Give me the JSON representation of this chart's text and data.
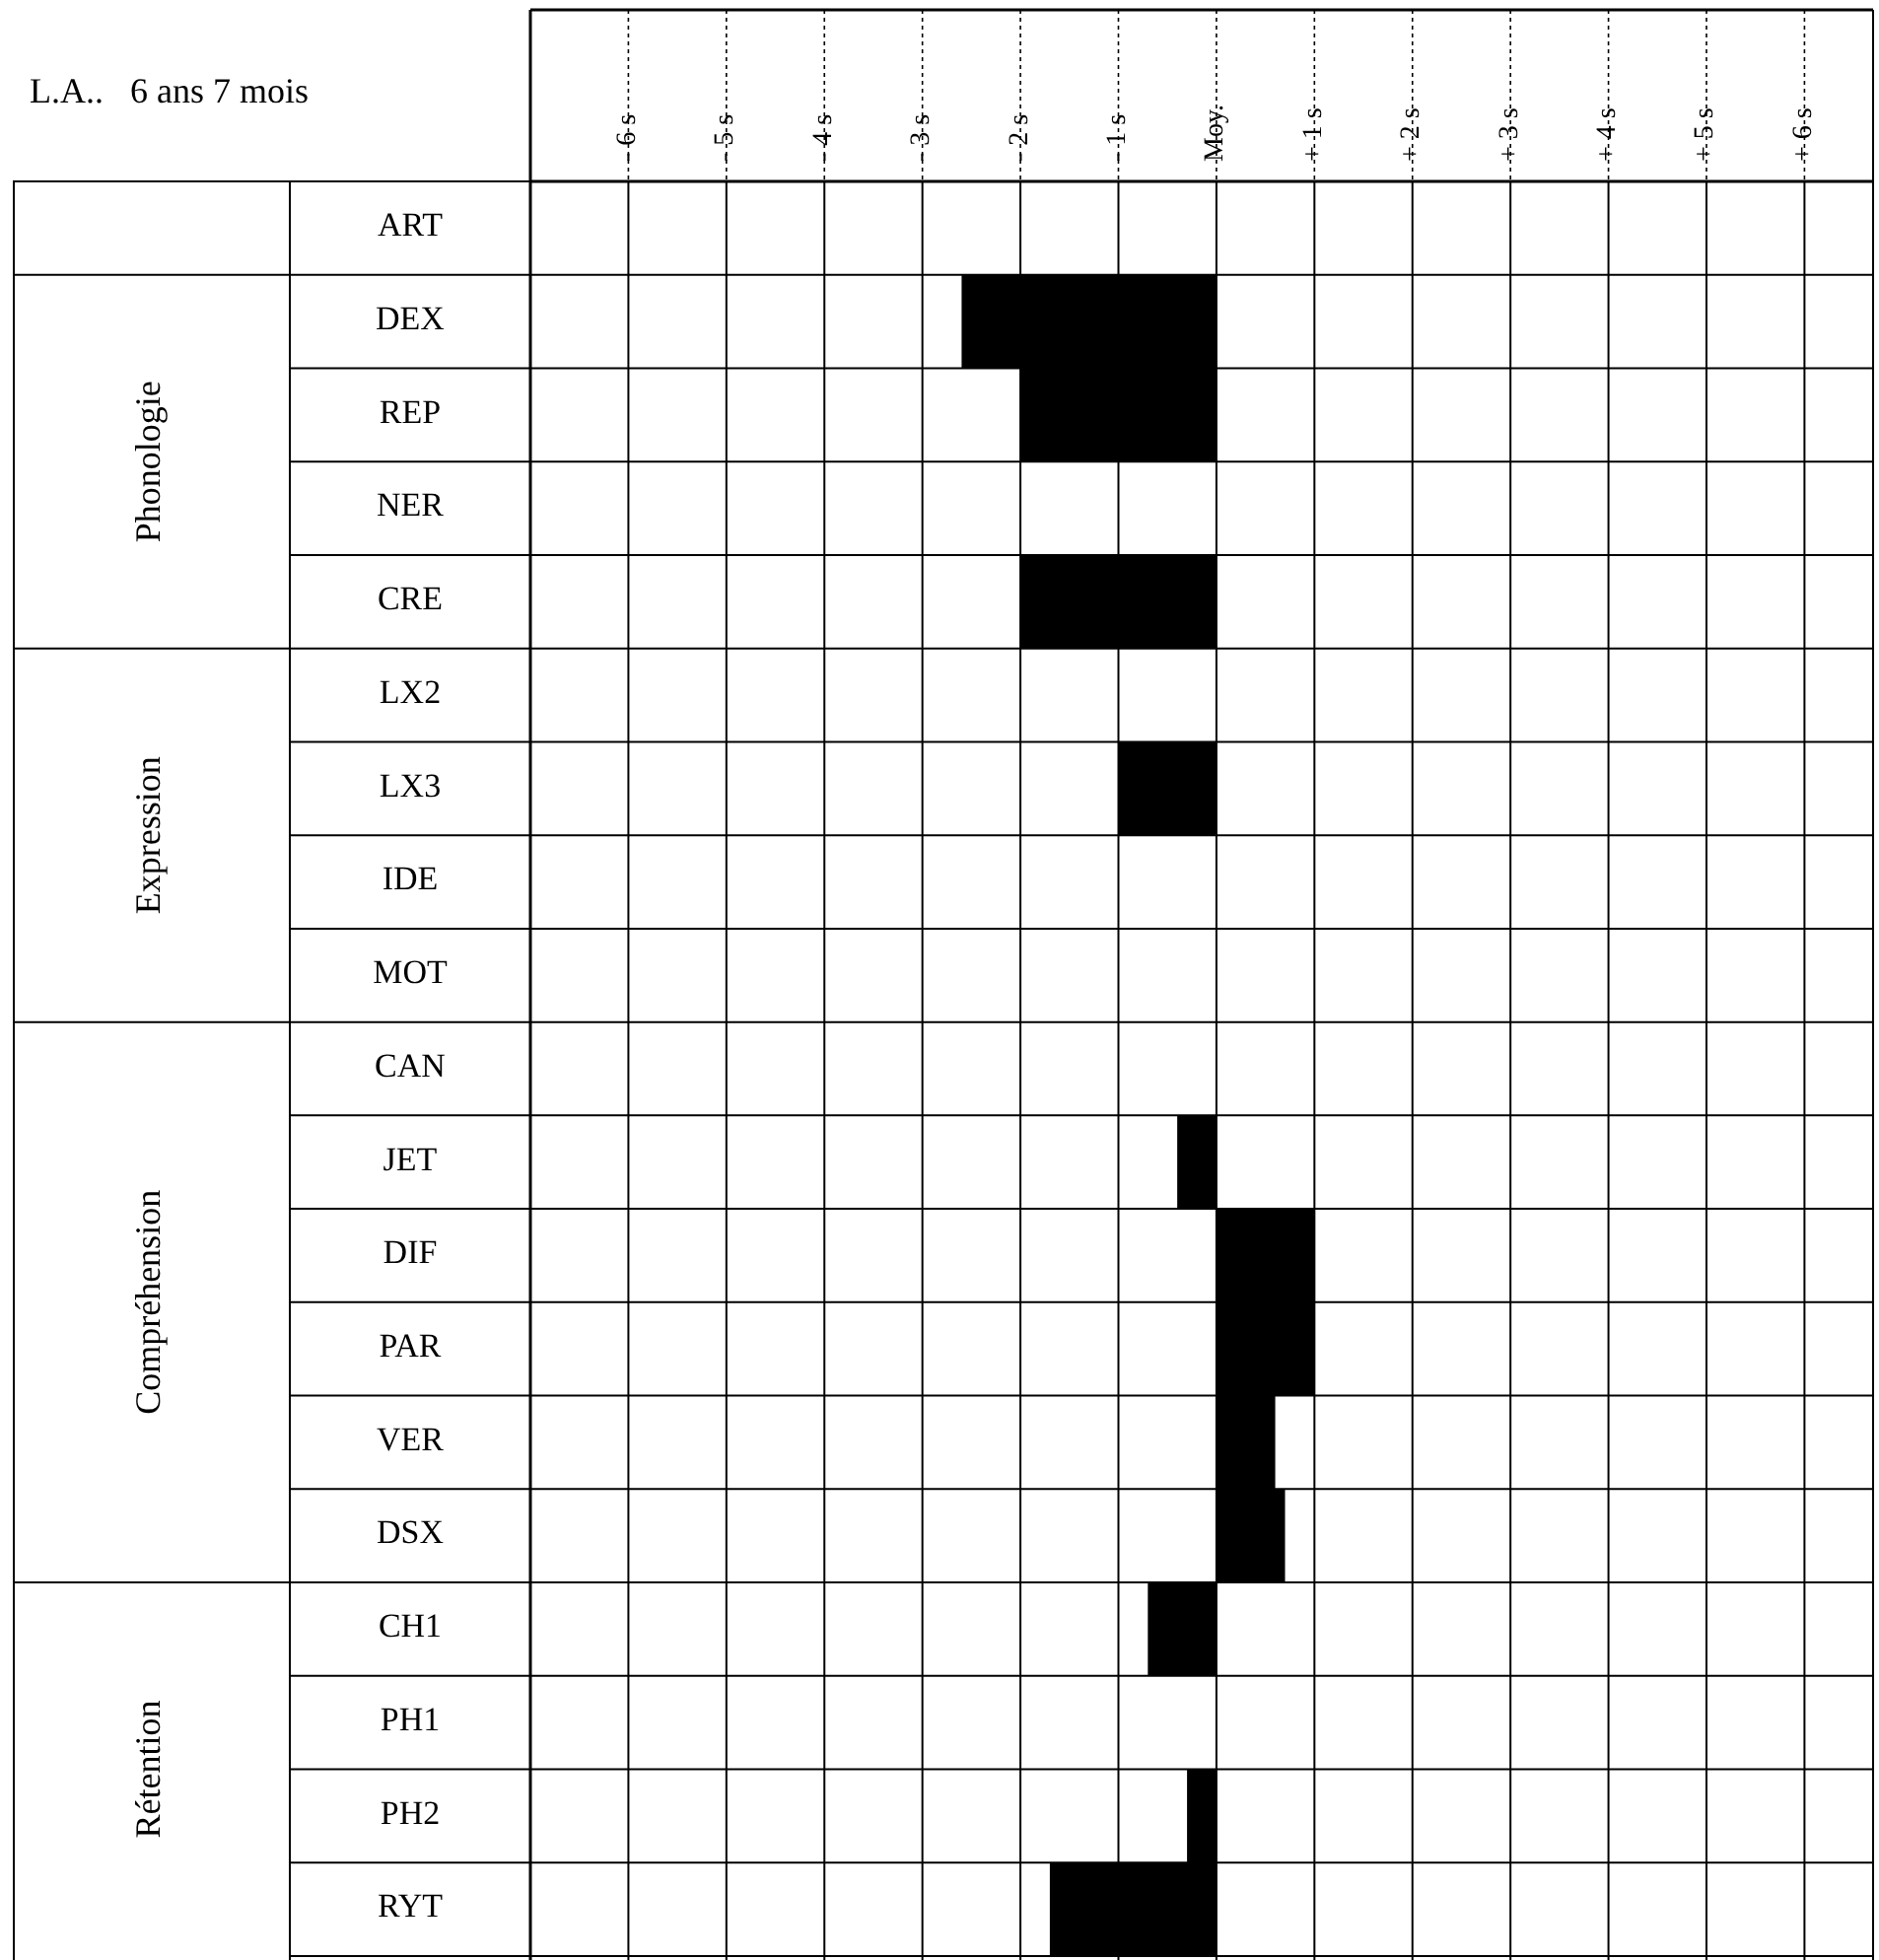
{
  "chart_data": {
    "type": "bar",
    "orientation": "horizontal",
    "title": "L.A..   6 ans 7 mois",
    "categories": [
      "ART",
      "DEX",
      "REP",
      "NER",
      "CRE",
      "LX2",
      "LX3",
      "IDE",
      "MOT",
      "CAN",
      "JET",
      "DIF",
      "PAR",
      "VER",
      "DSX",
      "CH1",
      "PH1",
      "PH2",
      "RYT"
    ],
    "values": [
      null,
      -2.6,
      -2.0,
      null,
      -2.0,
      null,
      -1.0,
      null,
      null,
      null,
      -0.4,
      1.0,
      1.0,
      0.6,
      0.7,
      -0.7,
      null,
      -0.3,
      -1.7
    ],
    "color": "#000000",
    "xlim": [
      -7,
      6.7
    ],
    "xticks": [
      {
        "value": -6,
        "label": "- 6 s"
      },
      {
        "value": -5,
        "label": "- 5 s"
      },
      {
        "value": -4,
        "label": "- 4 s"
      },
      {
        "value": -3,
        "label": "- 3 s"
      },
      {
        "value": -2,
        "label": "- 2 s"
      },
      {
        "value": -1,
        "label": "- 1 s"
      },
      {
        "value": 0,
        "label": "Moy."
      },
      {
        "value": 1,
        "label": "+ 1 s"
      },
      {
        "value": 2,
        "label": "+ 2 s"
      },
      {
        "value": 3,
        "label": "+ 3 s"
      },
      {
        "value": 4,
        "label": "+ 4 s"
      },
      {
        "value": 5,
        "label": "+ 5 s"
      },
      {
        "value": 6,
        "label": "+ 6 s"
      }
    ],
    "grid": true,
    "annotations": [
      "Phonologie",
      "Expression",
      "Compréhension",
      "Rétention"
    ]
  }
}
